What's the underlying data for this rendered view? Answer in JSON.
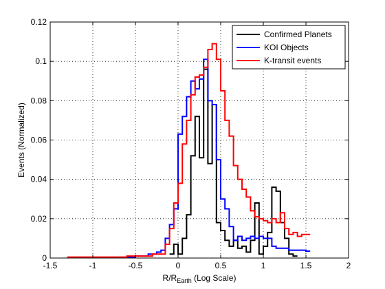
{
  "chart_data": {
    "type": "line",
    "title": "",
    "xlabel": "R/R",
    "xlabel_sub": "Earth",
    "xlabel_suffix": " (Log Scale)",
    "ylabel": "Events (Normalized)",
    "xlim": [
      -1.5,
      2
    ],
    "ylim": [
      0,
      0.12
    ],
    "xticks": [
      -1.5,
      -1,
      -0.5,
      0,
      0.5,
      1,
      1.5,
      2
    ],
    "xtick_labels": [
      "-1.5",
      "-1",
      "-0.5",
      "0",
      "0.5",
      "1",
      "1.5",
      "2"
    ],
    "yticks": [
      0,
      0.02,
      0.04,
      0.06,
      0.08,
      0.1,
      0.12
    ],
    "ytick_labels": [
      "0",
      "0.02",
      "0.04",
      "0.06",
      "0.08",
      "0.1",
      "0.12"
    ],
    "grid": true,
    "legend_position": "top-right",
    "step_width": 0.05,
    "series": [
      {
        "name": "Confirmed Planets",
        "color": "#000000",
        "x": [
          -0.1,
          -0.05,
          0,
          0.05,
          0.1,
          0.15,
          0.2,
          0.25,
          0.3,
          0.35,
          0.4,
          0.45,
          0.5,
          0.55,
          0.6,
          0.65,
          0.7,
          0.75,
          0.8,
          0.85,
          0.9,
          0.95,
          1,
          1.05,
          1.1,
          1.15,
          1.2,
          1.25,
          1.3,
          1.35
        ],
        "values": [
          0.002,
          0.007,
          0.002,
          0.01,
          0.022,
          0.052,
          0.072,
          0.051,
          0.096,
          0.048,
          0.078,
          0.018,
          0.014,
          0.009,
          0.006,
          0.009,
          0.005,
          0.006,
          0.003,
          0.009,
          0.028,
          0.002,
          0.006,
          0.013,
          0.036,
          0.034,
          0.018,
          0.01,
          0.002,
          0.001
        ]
      },
      {
        "name": "KOI Objects",
        "color": "#0000ff",
        "x": [
          -0.6,
          -0.55,
          -0.5,
          -0.45,
          -0.4,
          -0.35,
          -0.3,
          -0.25,
          -0.2,
          -0.15,
          -0.1,
          -0.05,
          0,
          0.05,
          0.1,
          0.15,
          0.2,
          0.25,
          0.3,
          0.35,
          0.4,
          0.45,
          0.5,
          0.55,
          0.6,
          0.65,
          0.7,
          0.75,
          0.8,
          0.85,
          0.9,
          0.95,
          1,
          1.05,
          1.1,
          1.15,
          1.2,
          1.25,
          1.3,
          1.35,
          1.4,
          1.45,
          1.5
        ],
        "values": [
          0.0005,
          0.0005,
          0.001,
          0.001,
          0.001,
          0.002,
          0.002,
          0.003,
          0.004,
          0.01,
          0.017,
          0.025,
          0.063,
          0.072,
          0.082,
          0.09,
          0.086,
          0.091,
          0.101,
          0.08,
          0.078,
          0.05,
          0.03,
          0.025,
          0.016,
          0.009,
          0.011,
          0.009,
          0.01,
          0.011,
          0.01,
          0.011,
          0.01,
          0.01,
          0.006,
          0.005,
          0.005,
          0.005,
          0.004,
          0.004,
          0.004,
          0.004,
          0.0035
        ]
      },
      {
        "name": "K-transit events",
        "color": "#ff0000",
        "x": [
          -1.3,
          -1.25,
          -1.2,
          -1.15,
          -1.1,
          -1.05,
          -1,
          -0.95,
          -0.9,
          -0.85,
          -0.8,
          -0.75,
          -0.7,
          -0.65,
          -0.6,
          -0.55,
          -0.5,
          -0.45,
          -0.4,
          -0.35,
          -0.3,
          -0.25,
          -0.2,
          -0.15,
          -0.1,
          -0.05,
          0,
          0.05,
          0.1,
          0.15,
          0.2,
          0.25,
          0.3,
          0.35,
          0.4,
          0.45,
          0.5,
          0.55,
          0.6,
          0.65,
          0.7,
          0.75,
          0.8,
          0.85,
          0.9,
          0.95,
          1,
          1.05,
          1.1,
          1.15,
          1.2,
          1.25,
          1.3,
          1.35,
          1.4,
          1.45,
          1.5
        ],
        "values": [
          0.0005,
          0.0005,
          0.0005,
          0.0005,
          0.0005,
          0.0005,
          0.0005,
          0.0005,
          0.0005,
          0.0005,
          0.0005,
          0.0005,
          0.0005,
          0.0005,
          0.001,
          0.001,
          0.001,
          0.001,
          0.001,
          0.001,
          0.002,
          0.002,
          0.002,
          0.007,
          0.015,
          0.028,
          0.038,
          0.058,
          0.07,
          0.083,
          0.092,
          0.093,
          0.097,
          0.106,
          0.109,
          0.101,
          0.085,
          0.07,
          0.062,
          0.047,
          0.04,
          0.035,
          0.031,
          0.024,
          0.021,
          0.02,
          0.019,
          0.018,
          0.02,
          0.018,
          0.023,
          0.015,
          0.012,
          0.013,
          0.011,
          0.012,
          0.012
        ]
      }
    ]
  }
}
